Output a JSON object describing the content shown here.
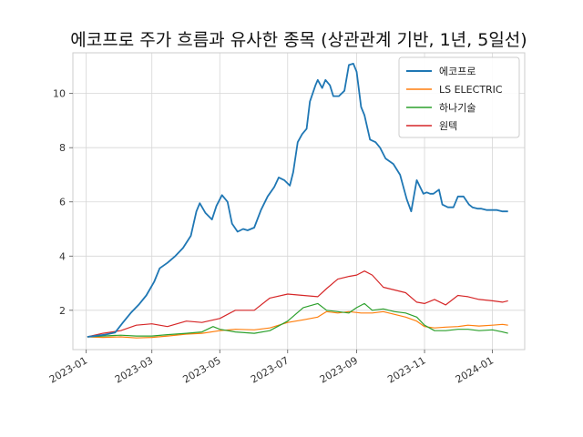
{
  "chart_data": {
    "type": "line",
    "title": "에코프로 주가 흐름과 유사한 종목 (상관관계 기반, 1년, 5일선)",
    "xlabel": "",
    "ylabel": "",
    "x_ticks": [
      "2023-01",
      "2023-03",
      "2023-05",
      "2023-07",
      "2023-09",
      "2023-11",
      "2024-01"
    ],
    "x_tick_dates": [
      "2023-01-01",
      "2023-03-01",
      "2023-05-01",
      "2023-07-01",
      "2023-09-01",
      "2023-11-01",
      "2024-01-01"
    ],
    "xlim": [
      "2022-12-20",
      "2024-01-30"
    ],
    "y_ticks": [
      "2",
      "4",
      "6",
      "8",
      "10"
    ],
    "y_tick_values": [
      2,
      4,
      6,
      8,
      10
    ],
    "ylim": [
      0.55,
      11.5
    ],
    "grid": true,
    "legend_position": "top-right",
    "series": [
      {
        "name": "에코프로",
        "color": "#1f77b4",
        "x": [
          "2023-01-02",
          "2023-01-10",
          "2023-01-18",
          "2023-01-27",
          "2023-02-03",
          "2023-02-10",
          "2023-02-17",
          "2023-02-24",
          "2023-03-03",
          "2023-03-08",
          "2023-03-15",
          "2023-03-22",
          "2023-03-29",
          "2023-04-05",
          "2023-04-10",
          "2023-04-13",
          "2023-04-18",
          "2023-04-24",
          "2023-04-28",
          "2023-05-03",
          "2023-05-08",
          "2023-05-12",
          "2023-05-17",
          "2023-05-22",
          "2023-05-26",
          "2023-06-01",
          "2023-06-07",
          "2023-06-13",
          "2023-06-19",
          "2023-06-23",
          "2023-06-28",
          "2023-07-03",
          "2023-07-06",
          "2023-07-10",
          "2023-07-14",
          "2023-07-18",
          "2023-07-21",
          "2023-07-26",
          "2023-07-28",
          "2023-08-01",
          "2023-08-04",
          "2023-08-08",
          "2023-08-11",
          "2023-08-16",
          "2023-08-21",
          "2023-08-25",
          "2023-08-29",
          "2023-09-01",
          "2023-09-05",
          "2023-09-08",
          "2023-09-13",
          "2023-09-18",
          "2023-09-22",
          "2023-09-27",
          "2023-10-04",
          "2023-10-10",
          "2023-10-16",
          "2023-10-20",
          "2023-10-25",
          "2023-10-31",
          "2023-11-03",
          "2023-11-06",
          "2023-11-09",
          "2023-11-14",
          "2023-11-17",
          "2023-11-22",
          "2023-11-27",
          "2023-12-01",
          "2023-12-06",
          "2023-12-11",
          "2023-12-14",
          "2023-12-19",
          "2023-12-22",
          "2023-12-27",
          "2024-01-02",
          "2024-01-05",
          "2024-01-10",
          "2024-01-15"
        ],
        "values": [
          1.02,
          1.06,
          1.1,
          1.18,
          1.55,
          1.9,
          2.2,
          2.55,
          3.05,
          3.55,
          3.75,
          4.0,
          4.3,
          4.75,
          5.65,
          5.95,
          5.6,
          5.35,
          5.85,
          6.25,
          6.0,
          5.2,
          4.9,
          5.0,
          4.95,
          5.05,
          5.7,
          6.2,
          6.55,
          6.9,
          6.8,
          6.6,
          7.1,
          8.2,
          8.5,
          8.7,
          9.7,
          10.3,
          10.5,
          10.2,
          10.5,
          10.3,
          9.9,
          9.9,
          10.1,
          11.05,
          11.1,
          10.8,
          9.5,
          9.2,
          8.3,
          8.2,
          8.0,
          7.6,
          7.4,
          7.0,
          6.1,
          5.65,
          6.8,
          6.3,
          6.35,
          6.3,
          6.3,
          6.45,
          5.9,
          5.8,
          5.8,
          6.2,
          6.2,
          5.9,
          5.8,
          5.75,
          5.75,
          5.7,
          5.7,
          5.7,
          5.65,
          5.65
        ]
      },
      {
        "name": "LS ELECTRIC",
        "color": "#ff7f0e",
        "x": [
          "2023-01-02",
          "2023-01-16",
          "2023-02-01",
          "2023-02-15",
          "2023-03-01",
          "2023-03-15",
          "2023-04-01",
          "2023-04-15",
          "2023-05-01",
          "2023-05-15",
          "2023-06-01",
          "2023-06-15",
          "2023-07-01",
          "2023-07-15",
          "2023-07-28",
          "2023-08-05",
          "2023-08-15",
          "2023-08-25",
          "2023-09-05",
          "2023-09-15",
          "2023-09-25",
          "2023-10-05",
          "2023-10-15",
          "2023-10-25",
          "2023-11-01",
          "2023-11-10",
          "2023-11-20",
          "2023-12-01",
          "2023-12-10",
          "2023-12-20",
          "2024-01-01",
          "2024-01-10",
          "2024-01-15"
        ],
        "values": [
          1.02,
          1.0,
          1.02,
          0.98,
          1.0,
          1.05,
          1.12,
          1.15,
          1.25,
          1.3,
          1.28,
          1.35,
          1.55,
          1.65,
          1.75,
          1.95,
          1.9,
          1.95,
          1.9,
          1.9,
          1.95,
          1.85,
          1.75,
          1.6,
          1.4,
          1.35,
          1.38,
          1.4,
          1.45,
          1.42,
          1.45,
          1.48,
          1.45
        ]
      },
      {
        "name": "하나기술",
        "color": "#2ca02c",
        "x": [
          "2023-01-02",
          "2023-01-16",
          "2023-02-01",
          "2023-02-15",
          "2023-03-01",
          "2023-03-15",
          "2023-04-01",
          "2023-04-15",
          "2023-04-25",
          "2023-05-01",
          "2023-05-15",
          "2023-06-01",
          "2023-06-15",
          "2023-07-01",
          "2023-07-15",
          "2023-07-28",
          "2023-08-05",
          "2023-08-15",
          "2023-08-25",
          "2023-09-01",
          "2023-09-08",
          "2023-09-15",
          "2023-09-25",
          "2023-10-05",
          "2023-10-15",
          "2023-10-25",
          "2023-11-01",
          "2023-11-10",
          "2023-11-20",
          "2023-12-01",
          "2023-12-10",
          "2023-12-20",
          "2024-01-01",
          "2024-01-10",
          "2024-01-15"
        ],
        "values": [
          1.02,
          1.05,
          1.08,
          1.05,
          1.05,
          1.1,
          1.15,
          1.2,
          1.4,
          1.3,
          1.2,
          1.15,
          1.25,
          1.6,
          2.1,
          2.25,
          2.0,
          1.95,
          1.9,
          2.1,
          2.25,
          2.0,
          2.05,
          1.95,
          1.9,
          1.75,
          1.45,
          1.25,
          1.25,
          1.3,
          1.3,
          1.25,
          1.28,
          1.2,
          1.15
        ]
      },
      {
        "name": "원텍",
        "color": "#d62728",
        "x": [
          "2023-01-02",
          "2023-01-16",
          "2023-02-01",
          "2023-02-15",
          "2023-03-01",
          "2023-03-15",
          "2023-04-01",
          "2023-04-15",
          "2023-05-01",
          "2023-05-15",
          "2023-06-01",
          "2023-06-15",
          "2023-07-01",
          "2023-07-15",
          "2023-07-28",
          "2023-08-05",
          "2023-08-15",
          "2023-08-25",
          "2023-09-01",
          "2023-09-08",
          "2023-09-15",
          "2023-09-25",
          "2023-10-05",
          "2023-10-15",
          "2023-10-25",
          "2023-11-01",
          "2023-11-10",
          "2023-11-20",
          "2023-12-01",
          "2023-12-10",
          "2023-12-20",
          "2024-01-01",
          "2024-01-10",
          "2024-01-15"
        ],
        "values": [
          1.02,
          1.15,
          1.25,
          1.45,
          1.5,
          1.4,
          1.6,
          1.55,
          1.7,
          2.0,
          2.0,
          2.45,
          2.6,
          2.55,
          2.5,
          2.8,
          3.15,
          3.25,
          3.3,
          3.45,
          3.3,
          2.85,
          2.75,
          2.65,
          2.3,
          2.25,
          2.4,
          2.2,
          2.55,
          2.5,
          2.4,
          2.35,
          2.3,
          2.35
        ]
      }
    ]
  }
}
